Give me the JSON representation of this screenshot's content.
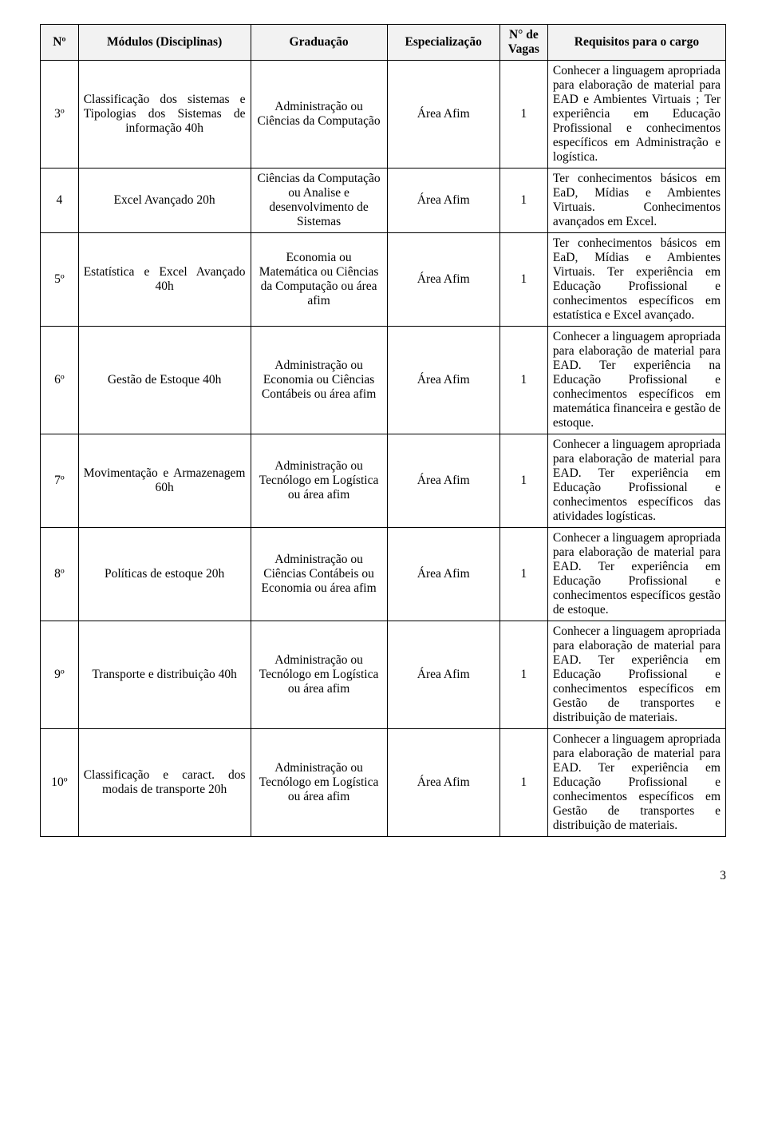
{
  "headers": {
    "num": "Nº",
    "modulos": "Módulos (Disciplinas)",
    "graduacao": "Graduação",
    "especializacao": "Especialização",
    "vagas": "N° de Vagas",
    "requisitos": "Requisitos para o cargo"
  },
  "rows": [
    {
      "n": "3º",
      "mod": "Classificação dos sistemas e Tipologias dos Sistemas de informação 40h",
      "grad": "Administração ou Ciências da Computação",
      "esp": "Área Afim",
      "vag": "1",
      "req": "Conhecer a linguagem apropriada para elaboração de material para EAD e Ambientes Virtuais ; Ter experiência em Educação Profissional e conhecimentos específicos em Administração e logística."
    },
    {
      "n": "4",
      "mod": "Excel Avançado 20h",
      "grad": "Ciências da Computação ou Analise e desenvolvimento de Sistemas",
      "esp": "Área Afim",
      "vag": "1",
      "req": "Ter conhecimentos básicos em EaD, Mídias e Ambientes Virtuais. Conhecimentos avançados em Excel."
    },
    {
      "n": "5º",
      "mod": "Estatística e Excel Avançado 40h",
      "grad": "Economia ou Matemática ou Ciências da Computação ou área afim",
      "esp": "Área Afim",
      "vag": "1",
      "req": "Ter conhecimentos básicos em EaD, Mídias e Ambientes Virtuais. Ter experiência em Educação Profissional e conhecimentos específicos em estatística e Excel avançado."
    },
    {
      "n": "6º",
      "mod": "Gestão de Estoque 40h",
      "grad": "Administração ou Economia ou Ciências Contábeis ou área afim",
      "esp": "Área Afim",
      "vag": "1",
      "req": "Conhecer a linguagem apropriada para elaboração de material para EAD. Ter experiência na Educação Profissional e conhecimentos específicos em matemática financeira e gestão de estoque."
    },
    {
      "n": "7º",
      "mod": "Movimentação e Armazenagem 60h",
      "grad": "Administração ou Tecnólogo em Logística ou área afim",
      "esp": "Área Afim",
      "vag": "1",
      "req": "Conhecer a linguagem apropriada para elaboração de material para EAD. Ter experiência em Educação Profissional e conhecimentos específicos das atividades logísticas."
    },
    {
      "n": "8º",
      "mod": "Políticas de estoque 20h",
      "grad": "Administração ou Ciências Contábeis ou Economia ou área afim",
      "esp": "Área Afim",
      "vag": "1",
      "req": "Conhecer a linguagem apropriada para elaboração de material para EAD. Ter experiência em Educação Profissional e conhecimentos específicos gestão de estoque."
    },
    {
      "n": "9º",
      "mod": "Transporte e distribuição 40h",
      "grad": "Administração ou Tecnólogo em Logística ou área afim",
      "esp": "Área Afim",
      "vag": "1",
      "req": "Conhecer a linguagem apropriada para elaboração de material para EAD. Ter experiência em Educação Profissional e conhecimentos específicos em Gestão de transportes e distribuição de materiais."
    },
    {
      "n": "10º",
      "mod": "Classificação e caract. dos modais de transporte 20h",
      "grad": "Administração ou Tecnólogo em Logística ou área afim",
      "esp": "Área Afim",
      "vag": "1",
      "req": "Conhecer a linguagem apropriada para elaboração de material para EAD. Ter experiência em Educação Profissional e conhecimentos específicos em Gestão de transportes e distribuição de materiais."
    }
  ],
  "page_number": "3"
}
